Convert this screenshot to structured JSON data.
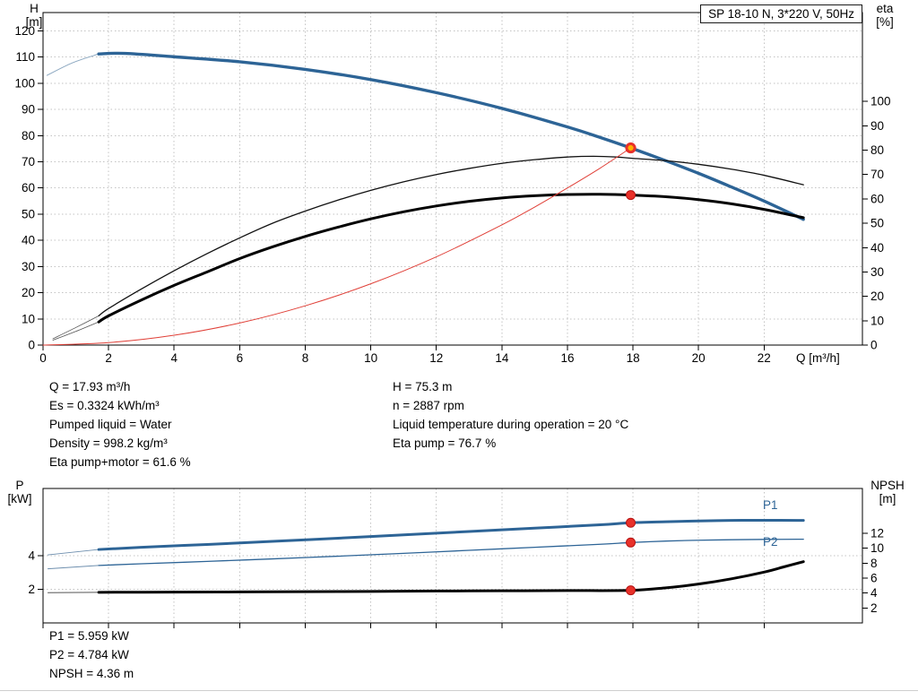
{
  "title_box": "SP 18-10 N, 3*220 V, 50Hz",
  "colors": {
    "curve_blue": "#2d6496",
    "curve_black": "#000000",
    "system_red": "#e04038",
    "marker_red": "#e8312a",
    "marker_duty_fill": "#ffb000",
    "grid_gray": "#c3c3c3"
  },
  "curve_labels": {
    "p1": "P1",
    "p2": "P2"
  },
  "operating_point": {
    "left": [
      "Q = 17.93 m³/h",
      "Es = 0.3324 kWh/m³",
      "Pumped liquid = Water",
      "Density = 998.2 kg/m³",
      "Eta pump+motor = 61.6 %"
    ],
    "right": [
      "H = 75.3 m",
      "n = 2887 rpm",
      "Liquid temperature during operation = 20 °C",
      "Eta pump = 76.7 %"
    ]
  },
  "power_point": [
    "P1 = 5.959 kW",
    "P2 = 4.784 kW",
    "NPSH = 4.36 m"
  ],
  "chart_data": [
    {
      "type": "line",
      "name": "performance-curves",
      "show_x_labels": true,
      "x": {
        "min": 0,
        "max": 25,
        "ticks": [
          0,
          2,
          4,
          6,
          8,
          10,
          12,
          14,
          16,
          18,
          20,
          22
        ],
        "label": "Q [m³/h]"
      },
      "left": {
        "min": 0,
        "max": 127,
        "ticks": [
          0,
          10,
          20,
          30,
          40,
          50,
          60,
          70,
          80,
          90,
          100,
          110,
          120
        ],
        "label": "H",
        "unit": "[m]"
      },
      "right": {
        "min": 0,
        "max": 136.5,
        "ticks": [
          0,
          10,
          20,
          30,
          40,
          50,
          60,
          70,
          80,
          90,
          100
        ],
        "label": "eta",
        "unit": "[%]"
      },
      "series": [
        {
          "name": "H-lead",
          "axis": "left",
          "color": "#8ba7c0",
          "width": 1,
          "points": [
            [
              0.12,
              103
            ],
            [
              0.9,
              107.8
            ],
            [
              1.7,
              111.2
            ]
          ]
        },
        {
          "name": "H",
          "axis": "left",
          "color": "#2d6496",
          "width": 3.4,
          "points": [
            [
              1.7,
              111.2
            ],
            [
              2.5,
              111.4
            ],
            [
              4,
              110.1
            ],
            [
              6,
              108.2
            ],
            [
              8,
              105.3
            ],
            [
              10,
              101.4
            ],
            [
              12,
              96.4
            ],
            [
              14,
              90.4
            ],
            [
              16,
              83.3
            ],
            [
              17,
              79.3
            ],
            [
              17.93,
              75.3
            ],
            [
              19,
              70.4
            ],
            [
              20,
              65.6
            ],
            [
              21,
              60.4
            ],
            [
              22,
              55.0
            ],
            [
              23.2,
              48.0
            ]
          ]
        },
        {
          "name": "eta-pump-lead",
          "axis": "right",
          "color": "#555555",
          "width": 0.8,
          "points": [
            [
              0.3,
              2.6
            ],
            [
              1.0,
              7.2
            ],
            [
              1.7,
              12.0
            ]
          ]
        },
        {
          "name": "eta-pump",
          "axis": "right",
          "color": "#111111",
          "width": 1.3,
          "points": [
            [
              1.7,
              12
            ],
            [
              2,
              15
            ],
            [
              3,
              23
            ],
            [
              4,
              30.5
            ],
            [
              5,
              37.5
            ],
            [
              6,
              44
            ],
            [
              7,
              50
            ],
            [
              8,
              55
            ],
            [
              9,
              59.5
            ],
            [
              10,
              63.5
            ],
            [
              11,
              67
            ],
            [
              12,
              70
            ],
            [
              13,
              72.5
            ],
            [
              14,
              74.6
            ],
            [
              15,
              76.1
            ],
            [
              16,
              77.2
            ],
            [
              16.8,
              77.5
            ],
            [
              17.5,
              77.2
            ],
            [
              17.93,
              76.7
            ],
            [
              19,
              75.7
            ],
            [
              20,
              74.2
            ],
            [
              21,
              72.2
            ],
            [
              22,
              69.7
            ],
            [
              23.2,
              65.8
            ]
          ]
        },
        {
          "name": "eta-pump-motor-lead",
          "axis": "right",
          "color": "#555555",
          "width": 0.8,
          "points": [
            [
              0.3,
              2.0
            ],
            [
              1.0,
              5.6
            ],
            [
              1.7,
              9.5
            ]
          ]
        },
        {
          "name": "eta-pump-motor",
          "axis": "right",
          "color": "#000000",
          "width": 3,
          "points": [
            [
              1.7,
              9.5
            ],
            [
              2,
              12
            ],
            [
              3,
              18.5
            ],
            [
              4,
              24.5
            ],
            [
              5,
              30
            ],
            [
              6,
              35.5
            ],
            [
              7,
              40.3
            ],
            [
              8,
              44.6
            ],
            [
              9,
              48.4
            ],
            [
              10,
              51.8
            ],
            [
              11,
              54.7
            ],
            [
              12,
              57.1
            ],
            [
              13,
              59.0
            ],
            [
              14,
              60.4
            ],
            [
              15,
              61.3
            ],
            [
              16,
              61.8
            ],
            [
              17,
              61.9
            ],
            [
              17.93,
              61.6
            ],
            [
              19,
              60.9
            ],
            [
              20,
              59.7
            ],
            [
              21,
              58.0
            ],
            [
              22,
              55.7
            ],
            [
              23.2,
              52.3
            ]
          ]
        },
        {
          "name": "system-curve",
          "axis": "left",
          "color": "#e04038",
          "width": 1,
          "points": [
            [
              0,
              0
            ],
            [
              2,
              0.94
            ],
            [
              4,
              3.75
            ],
            [
              6,
              8.43
            ],
            [
              8,
              15.0
            ],
            [
              10,
              23.4
            ],
            [
              12,
              33.7
            ],
            [
              14,
              45.9
            ],
            [
              15,
              52.7
            ],
            [
              16,
              60.0
            ],
            [
              17,
              67.6
            ],
            [
              17.93,
              75.3
            ]
          ]
        }
      ],
      "markers": [
        {
          "name": "duty-point",
          "q": 17.93,
          "value": 75.3,
          "axis": "left",
          "style": "duty"
        },
        {
          "name": "eta-pump-motor-point",
          "q": 17.93,
          "value": 61.6,
          "axis": "right",
          "style": "red"
        }
      ]
    },
    {
      "type": "line",
      "name": "power-npsh-curves",
      "show_x_labels": false,
      "x": {
        "min": 0,
        "max": 25,
        "ticks": [
          0,
          2,
          4,
          6,
          8,
          10,
          12,
          14,
          16,
          18,
          20,
          22
        ],
        "label": ""
      },
      "left": {
        "min": 0,
        "max": 8,
        "ticks": [
          2,
          4
        ],
        "label": "P",
        "unit": "[kW]"
      },
      "right": {
        "min": 0,
        "max": 18,
        "ticks": [
          2,
          4,
          6,
          8,
          10,
          12
        ],
        "label": "NPSH",
        "unit": "[m]"
      },
      "series": [
        {
          "name": "P1-lead",
          "axis": "left",
          "color": "#6e8fae",
          "width": 1,
          "points": [
            [
              0.15,
              4.05
            ],
            [
              1.7,
              4.37
            ]
          ]
        },
        {
          "name": "P1",
          "axis": "left",
          "color": "#2d6496",
          "width": 3,
          "points": [
            [
              1.7,
              4.37
            ],
            [
              3,
              4.5
            ],
            [
              5,
              4.67
            ],
            [
              7,
              4.85
            ],
            [
              9,
              5.04
            ],
            [
              11,
              5.24
            ],
            [
              13,
              5.44
            ],
            [
              15,
              5.64
            ],
            [
              17,
              5.84
            ],
            [
              17.93,
              5.959
            ],
            [
              19,
              6.02
            ],
            [
              20,
              6.07
            ],
            [
              21,
              6.1
            ],
            [
              22,
              6.11
            ],
            [
              23.2,
              6.1
            ]
          ]
        },
        {
          "name": "P2-lead",
          "axis": "left",
          "color": "#6e8fae",
          "width": 1,
          "points": [
            [
              0.15,
              3.22
            ],
            [
              1.7,
              3.42
            ]
          ]
        },
        {
          "name": "P2",
          "axis": "left",
          "color": "#2d6496",
          "width": 1.3,
          "points": [
            [
              1.7,
              3.42
            ],
            [
              3,
              3.52
            ],
            [
              5,
              3.66
            ],
            [
              7,
              3.81
            ],
            [
              9,
              3.97
            ],
            [
              11,
              4.14
            ],
            [
              13,
              4.32
            ],
            [
              15,
              4.5
            ],
            [
              17,
              4.68
            ],
            [
              17.93,
              4.784
            ],
            [
              19,
              4.87
            ],
            [
              20,
              4.92
            ],
            [
              21,
              4.95
            ],
            [
              22,
              4.97
            ],
            [
              23.2,
              4.98
            ]
          ]
        },
        {
          "name": "NPSH-lead",
          "axis": "right",
          "color": "#555555",
          "width": 1,
          "points": [
            [
              0.15,
              4.05
            ],
            [
              1.7,
              4.1
            ]
          ]
        },
        {
          "name": "NPSH",
          "axis": "right",
          "color": "#000000",
          "width": 3,
          "points": [
            [
              1.7,
              4.1
            ],
            [
              4,
              4.12
            ],
            [
              6,
              4.15
            ],
            [
              8,
              4.18
            ],
            [
              10,
              4.22
            ],
            [
              12,
              4.27
            ],
            [
              14,
              4.3
            ],
            [
              16,
              4.33
            ],
            [
              17.93,
              4.36
            ],
            [
              19,
              4.7
            ],
            [
              20,
              5.2
            ],
            [
              21,
              5.9
            ],
            [
              22,
              6.8
            ],
            [
              22.6,
              7.5
            ],
            [
              23.2,
              8.2
            ]
          ]
        }
      ],
      "markers": [
        {
          "name": "p1-point",
          "q": 17.93,
          "value": 5.959,
          "axis": "left",
          "style": "red"
        },
        {
          "name": "p2-point",
          "q": 17.93,
          "value": 4.784,
          "axis": "left",
          "style": "red"
        },
        {
          "name": "npsh-point",
          "q": 17.93,
          "value": 4.36,
          "axis": "right",
          "style": "red"
        }
      ]
    }
  ]
}
